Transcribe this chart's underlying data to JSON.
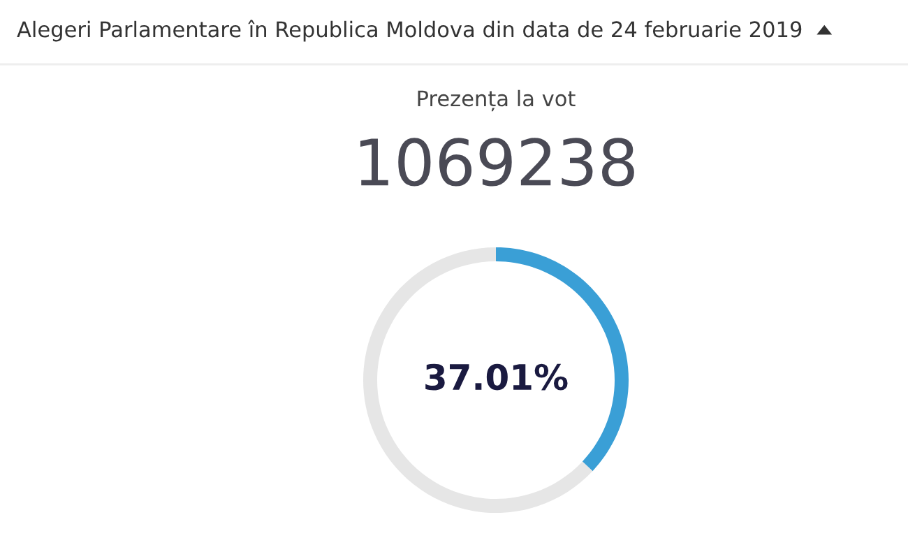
{
  "chart_data": {
    "type": "donut",
    "title": "Alegeri Parlamentare în Republica Moldova din data de 24 februarie 2019",
    "subtitle": "Prezența la vot",
    "annotations": [
      "1069238"
    ],
    "categories": [
      null,
      null
    ],
    "values": [
      37.01,
      62.99
    ],
    "colors": [
      "#3a9fd6",
      "#e6e6e6"
    ],
    "value_labels": [
      "37.01%",
      null
    ],
    "legend": false
  }
}
